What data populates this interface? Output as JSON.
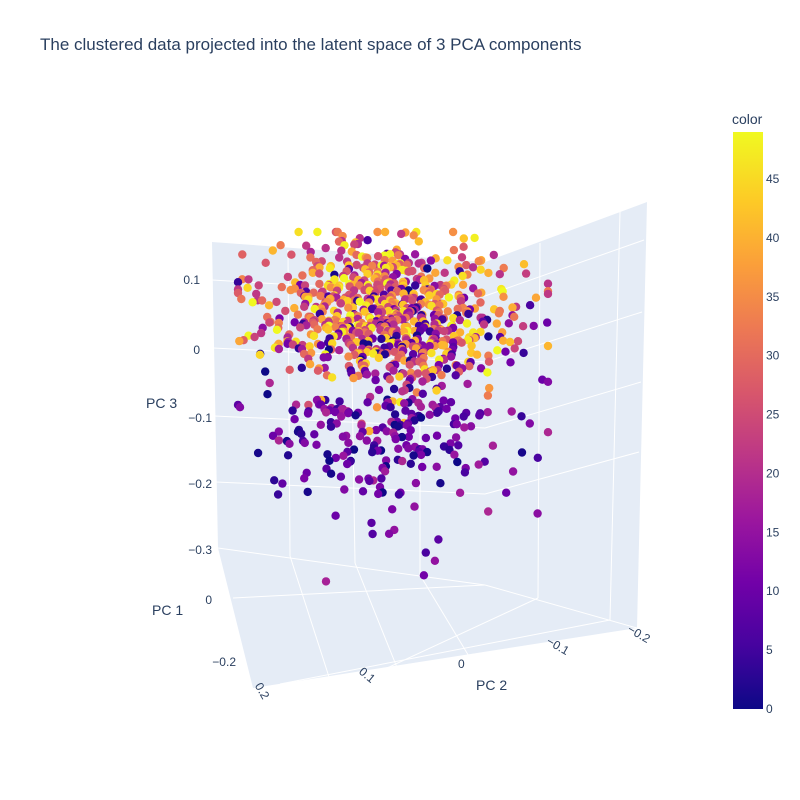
{
  "chart_data": {
    "type": "scatter",
    "title": "The clustered data projected into the latent space of 3 PCA components",
    "xlabel": "PC 1",
    "ylabel": "PC 2",
    "zlabel": "PC 3",
    "x_ticks": [
      "0.2",
      "0",
      "−0.2"
    ],
    "y_ticks": [
      "0.1",
      "0",
      "−0.1",
      "−0.2"
    ],
    "z_ticks": [
      "0.1",
      "0",
      "−0.1",
      "−0.2",
      "−0.3"
    ],
    "xlim": [
      -0.25,
      0.25
    ],
    "ylim": [
      -0.25,
      0.15
    ],
    "zlim": [
      -0.35,
      0.15
    ],
    "colorbar": {
      "title": "color",
      "range": [
        0,
        49
      ],
      "ticks": [
        "0",
        "5",
        "10",
        "15",
        "20",
        "25",
        "30",
        "35",
        "40",
        "45"
      ],
      "colorscale": [
        "#0d0887",
        "#46039f",
        "#7201a8",
        "#9c179e",
        "#bd3786",
        "#d8576b",
        "#ed7953",
        "#fb9f3a",
        "#fdca26",
        "#f0f921"
      ]
    },
    "marker_color_scale": "plasma",
    "point_count": 1000,
    "cluster_count": 50
  },
  "colors": {
    "plot_background": "#e5ecf6",
    "grid": "#ffffff",
    "text": "#2a3f5f"
  }
}
